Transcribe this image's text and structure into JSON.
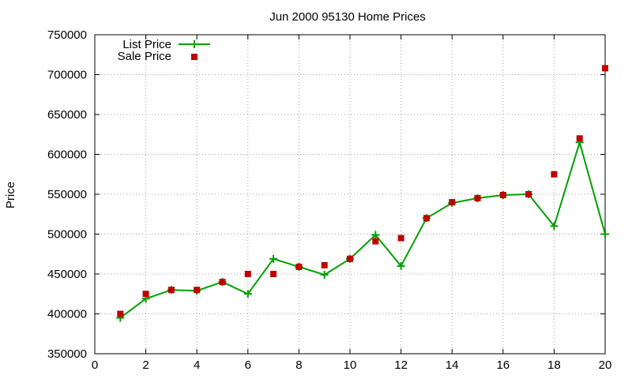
{
  "chart_data": {
    "type": "line",
    "title": "Jun 2000 95130 Home Prices",
    "xlabel": "",
    "ylabel": "Price",
    "xlim": [
      0,
      20
    ],
    "ylim": [
      350000,
      750000
    ],
    "x_ticks": [
      "0",
      "2",
      "4",
      "6",
      "8",
      "10",
      "12",
      "14",
      "16",
      "18",
      "20"
    ],
    "y_ticks": [
      "350000",
      "400000",
      "450000",
      "500000",
      "550000",
      "600000",
      "650000",
      "700000",
      "750000"
    ],
    "grid": true,
    "legend_position": "top-left",
    "series": [
      {
        "name": "List Price",
        "style": "linespoints",
        "marker": "plus",
        "color": "#00a000",
        "x": [
          1,
          2,
          3,
          4,
          5,
          6,
          7,
          8,
          9,
          10,
          11,
          12,
          13,
          14,
          15,
          16,
          17,
          18,
          19,
          20
        ],
        "values": [
          395000,
          419000,
          430000,
          429000,
          440000,
          425000,
          469000,
          459000,
          449000,
          469000,
          499000,
          460000,
          520000,
          539000,
          545000,
          549000,
          550000,
          510000,
          615000,
          500000
        ]
      },
      {
        "name": "Sale Price",
        "style": "points",
        "marker": "square",
        "color": "#c00000",
        "x": [
          1,
          2,
          3,
          4,
          5,
          6,
          7,
          8,
          9,
          10,
          11,
          12,
          13,
          14,
          15,
          16,
          17,
          18,
          19,
          20
        ],
        "values": [
          400000,
          425000,
          430000,
          430000,
          440000,
          450000,
          450000,
          459000,
          461000,
          469000,
          491000,
          495000,
          520000,
          540000,
          545000,
          549000,
          550000,
          575000,
          620000,
          708000
        ]
      }
    ]
  }
}
